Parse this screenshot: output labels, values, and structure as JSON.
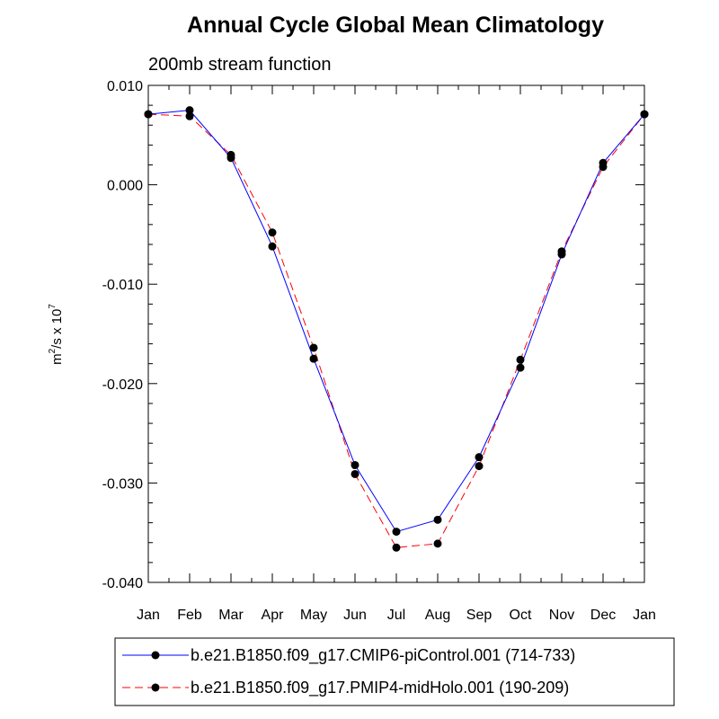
{
  "chart_data": {
    "type": "line",
    "title": "Annual Cycle Global Mean Climatology",
    "subtitle": "200mb stream function",
    "ylabel": {
      "base": "m",
      "exp1": "2",
      "mid": "/s x 10",
      "exp2": "7"
    },
    "categories": [
      "Jan",
      "Feb",
      "Mar",
      "Apr",
      "May",
      "Jun",
      "Jul",
      "Aug",
      "Sep",
      "Oct",
      "Nov",
      "Dec",
      "Jan"
    ],
    "ylim": [
      -0.04,
      0.01
    ],
    "yticks": [
      {
        "value": 0.01,
        "label": "0.010"
      },
      {
        "value": 0.0,
        "label": "0.000"
      },
      {
        "value": -0.01,
        "label": "-0.010"
      },
      {
        "value": -0.02,
        "label": "-0.020"
      },
      {
        "value": -0.03,
        "label": "-0.030"
      },
      {
        "value": -0.04,
        "label": "-0.040"
      }
    ],
    "series": [
      {
        "name": "b.e21.B1850.f09_g17.CMIP6-piControl.001 (714-733)",
        "color": "#0000ff",
        "dash": "solid",
        "values": [
          0.0071,
          0.0075,
          0.0027,
          -0.0062,
          -0.0175,
          -0.0282,
          -0.0349,
          -0.0337,
          -0.0274,
          -0.0184,
          -0.007,
          0.0022,
          0.0071
        ]
      },
      {
        "name": "b.e21.B1850.f09_g17.PMIP4-midHolo.001 (190-209)",
        "color": "#ff0000",
        "dash": "dashed",
        "values": [
          0.0071,
          0.0069,
          0.003,
          -0.0048,
          -0.0164,
          -0.0291,
          -0.0365,
          -0.0361,
          -0.0283,
          -0.0176,
          -0.0067,
          0.0018,
          0.0071
        ]
      }
    ]
  }
}
